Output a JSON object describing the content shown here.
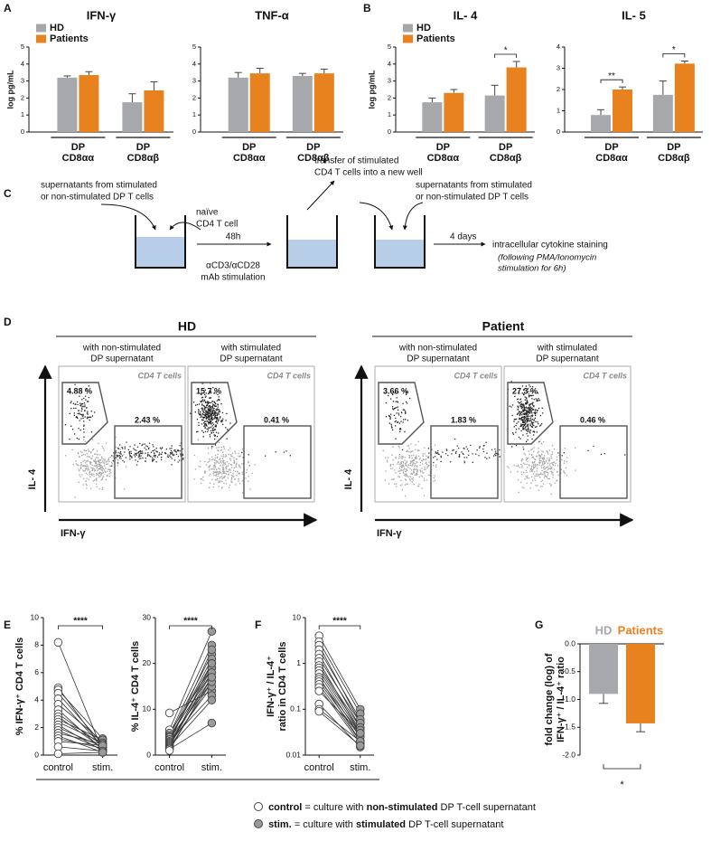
{
  "panel_labels": [
    "A",
    "B",
    "C",
    "D",
    "E",
    "F",
    "G"
  ],
  "chart_data": [
    {
      "type": "bar",
      "title": "IFN-γ",
      "ylabel": "log pg/mL",
      "categories": [
        [
          "DP",
          "CD8αα"
        ],
        [
          "DP",
          "CD8αβ"
        ]
      ],
      "series": [
        {
          "name": "HD",
          "color": "#a6a8ab",
          "values": [
            3.2,
            1.75
          ],
          "errors": [
            0.1,
            0.5
          ]
        },
        {
          "name": "Patients",
          "color": "#e8821e",
          "values": [
            3.35,
            2.45
          ],
          "errors": [
            0.2,
            0.5
          ]
        }
      ],
      "ylim": [
        0,
        5
      ],
      "yticks": [
        0,
        1,
        2,
        3,
        4,
        5
      ],
      "legend": "upper left"
    },
    {
      "type": "bar",
      "title": "TNF-α",
      "categories": [
        [
          "DP",
          "CD8αα"
        ],
        [
          "DP",
          "CD8αβ"
        ]
      ],
      "series": [
        {
          "color": "#a6a8ab",
          "values": [
            3.2,
            3.3
          ],
          "errors": [
            0.3,
            0.15
          ]
        },
        {
          "color": "#e8821e",
          "values": [
            3.45,
            3.45
          ],
          "errors": [
            0.3,
            0.25
          ]
        }
      ],
      "ylim": [
        0,
        5
      ],
      "yticks": [
        0,
        1,
        2,
        3,
        4,
        5
      ]
    },
    {
      "type": "bar",
      "title": "IL- 4",
      "ylabel": "log pg/mL",
      "categories": [
        [
          "DP",
          "CD8αα"
        ],
        [
          "DP",
          "CD8αβ"
        ]
      ],
      "series": [
        {
          "name": "HD",
          "color": "#a6a8ab",
          "values": [
            1.75,
            2.15
          ],
          "errors": [
            0.25,
            0.6
          ]
        },
        {
          "name": "Patients",
          "color": "#e8821e",
          "values": [
            2.3,
            3.8
          ],
          "errors": [
            0.2,
            0.35
          ]
        }
      ],
      "ylim": [
        0,
        5
      ],
      "yticks": [
        0,
        1,
        2,
        3,
        4,
        5
      ],
      "legend": "upper left",
      "significance": [
        {
          "label": "*",
          "category": 1
        }
      ]
    },
    {
      "type": "bar",
      "title": "IL- 5",
      "categories": [
        [
          "DP",
          "CD8αα"
        ],
        [
          "DP",
          "CD8αβ"
        ]
      ],
      "series": [
        {
          "color": "#a6a8ab",
          "values": [
            0.8,
            1.75
          ],
          "errors": [
            0.25,
            0.65
          ]
        },
        {
          "color": "#e8821e",
          "values": [
            2.0,
            3.22
          ],
          "errors": [
            0.12,
            0.12
          ]
        }
      ],
      "ylim": [
        0,
        4
      ],
      "yticks": [
        0,
        1,
        2,
        3,
        4
      ],
      "significance": [
        {
          "label": "**",
          "category": 0
        },
        {
          "label": "*",
          "category": 1
        }
      ]
    },
    {
      "type": "line",
      "ylabel": "% IFN-γ⁺ CD4 T cells",
      "categories": [
        "control",
        "stim."
      ],
      "colors": [
        "#ffffff",
        "#9a9a9a"
      ],
      "values": [
        [
          8.2,
          4.9,
          4.75,
          4.5,
          4.1,
          3.7,
          3.3,
          3.0,
          2.8,
          2.6,
          2.4,
          2.2,
          2.0,
          1.8,
          1.6,
          1.4,
          1.2,
          1.0,
          0.6,
          0.1
        ],
        [
          0.3,
          0.5,
          1.2,
          0.8,
          0.6,
          1.0,
          0.4,
          0.7,
          0.5,
          1.1,
          0.9,
          0.3,
          0.6,
          0.4,
          0.8,
          0.2,
          0.5,
          0.7,
          0.3,
          0.2
        ]
      ],
      "ylim": [
        0,
        10
      ],
      "yticks": [
        0,
        2,
        4,
        6,
        8,
        10
      ],
      "significance": [
        {
          "label": "****"
        }
      ]
    },
    {
      "type": "line",
      "ylabel": "% IL-4⁺ CD4 T cells",
      "categories": [
        "control",
        "stim."
      ],
      "colors": [
        "#ffffff",
        "#9a9a9a"
      ],
      "values": [
        [
          9.2,
          5.5,
          4.8,
          4.5,
          4.2,
          4.0,
          3.8,
          3.5,
          3.3,
          3.0,
          2.8,
          2.6,
          2.4,
          2.2,
          2.0,
          1.8,
          1.6,
          1.5,
          1.3,
          1.0
        ],
        [
          14,
          27,
          19,
          24,
          22,
          18,
          20,
          16,
          21,
          13,
          17,
          23,
          15,
          19,
          18,
          12,
          20,
          16,
          7,
          17
        ]
      ],
      "ylim": [
        0,
        30
      ],
      "yticks": [
        0,
        10,
        20,
        30
      ],
      "significance": [
        {
          "label": "****"
        }
      ]
    },
    {
      "type": "line",
      "ylabel": [
        "IFN-γ⁺ / IL-4⁺",
        "ratio in CD4 T cells"
      ],
      "log": true,
      "categories": [
        "control",
        "stim."
      ],
      "colors": [
        "#ffffff",
        "#9a9a9a"
      ],
      "values": [
        [
          4,
          3,
          2.5,
          2,
          1.6,
          1.3,
          1.1,
          0.9,
          0.8,
          0.7,
          0.6,
          0.5,
          0.45,
          0.4,
          0.35,
          0.3,
          0.25,
          0.13,
          0.1,
          0.09
        ],
        [
          0.1,
          0.08,
          0.05,
          0.06,
          0.04,
          0.05,
          0.03,
          0.04,
          0.035,
          0.03,
          0.025,
          0.02,
          0.03,
          0.025,
          0.02,
          0.018,
          0.03,
          0.015,
          0.02,
          0.016
        ]
      ],
      "ylim": [
        0.01,
        10
      ],
      "yticks": [
        0.01,
        0.1,
        1,
        10
      ],
      "significance": [
        {
          "label": "****"
        }
      ]
    },
    {
      "type": "bar",
      "ylabel": [
        "fold change (log) of",
        "IFN-γ⁺ / IL-4⁺ ratio"
      ],
      "categories": [
        "HD",
        "Patients"
      ],
      "colors": [
        "#a6a8ab",
        "#e8821e"
      ],
      "values": [
        -0.9,
        -1.43
      ],
      "errors": [
        0.17,
        0.15
      ],
      "ylim": [
        -2,
        0
      ],
      "yticks": [
        {
          "value": -2,
          "label": "-2.0"
        },
        {
          "value": -1.5,
          "label": "-1.5"
        },
        {
          "value": -1,
          "label": "-1.0"
        },
        {
          "value": -0.5,
          "label": "-0.5"
        },
        {
          "value": 0,
          "label": "0.0"
        }
      ],
      "significance": [
        {
          "label": "*"
        }
      ]
    }
  ],
  "diagram": {
    "supernatant_left": [
      "supernatants from stimulated",
      "or non-stimulated DP T cells"
    ],
    "naive": [
      "naïve",
      "CD4 T cell"
    ],
    "step1_time": "48h",
    "step1_stim": [
      "αCD3/αCD28",
      "mAb stimulation"
    ],
    "transfer": [
      "transfer of stimulated",
      "CD4 T cells into a new well"
    ],
    "supernatant_right": [
      "supernatants from stimulated",
      "or non-stimulated DP T cells"
    ],
    "step2_time": "4 days",
    "readout": "intracellular cytokine staining",
    "readout_note": [
      "(following PMA/Ionomycin",
      "stimulation for 6h)"
    ]
  },
  "flow": {
    "y_axis": "IL- 4",
    "x_axis": "IFN-γ",
    "gate_label": "CD4 T cells",
    "groups": [
      {
        "title": "HD",
        "plots": [
          {
            "condition": [
              "with non-stimulated",
              "DP supernatant"
            ],
            "upper_gate": "4.88 %",
            "lower_gate": "2.43 %"
          },
          {
            "condition": [
              "with stimulated",
              "DP supernatant"
            ],
            "upper_gate": "15.7 %",
            "lower_gate": "0.41 %"
          }
        ]
      },
      {
        "title": "Patient",
        "plots": [
          {
            "condition": [
              "with non-stimulated",
              "DP supernatant"
            ],
            "upper_gate": "3.66 %",
            "lower_gate": "1.83 %"
          },
          {
            "condition": [
              "with stimulated",
              "DP supernatant"
            ],
            "upper_gate": "27.3 %",
            "lower_gate": "0.46 %"
          }
        ]
      }
    ]
  },
  "legend": [
    {
      "term": "control",
      "before": "= culture with",
      "bold": "non-stimulated",
      "after": "DP T-cell supernatant"
    },
    {
      "term": "stim.",
      "before": "= culture with",
      "bold": "stimulated",
      "after": "DP T-cell supernatant"
    }
  ]
}
